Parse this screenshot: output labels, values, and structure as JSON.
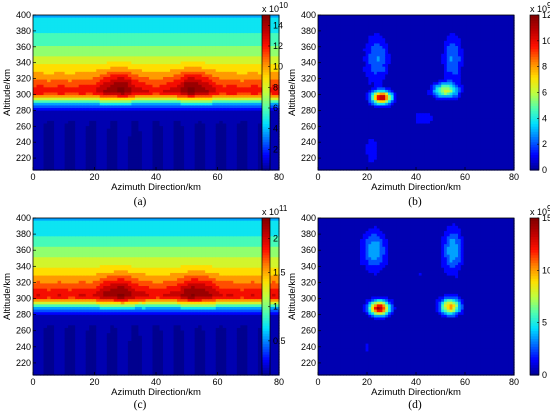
{
  "colormap": [
    "#00008f",
    "#0000ff",
    "#0070ff",
    "#00dfff",
    "#50ffaf",
    "#bfff40",
    "#ffdf00",
    "#ff8000",
    "#ff1000",
    "#bf0000",
    "#800000"
  ],
  "chart_data": [
    {
      "type": "heatmap",
      "caption": "(a)",
      "xlabel": "Azimuth Direction/km",
      "ylabel": "Altitude/km",
      "xlim": [
        0,
        80
      ],
      "ylim": [
        205,
        400
      ],
      "xticks": [
        "0",
        "20",
        "40",
        "60",
        "80"
      ],
      "yticks": [
        "220",
        "240",
        "260",
        "280",
        "300",
        "320",
        "340",
        "360",
        "380",
        "400"
      ],
      "colorbar": {
        "min": 0,
        "max": 15,
        "ticks": [
          "2",
          "4",
          "6",
          "8",
          "10",
          "12",
          "14"
        ],
        "multiplier": "x 10",
        "exponent": "10"
      },
      "field": {
        "kind": "layer",
        "peak_altitude": 305,
        "peak_value": 12.5,
        "bumps": [
          [
            28,
            312
          ],
          [
            52,
            312
          ]
        ],
        "bump_value": 3.0
      }
    },
    {
      "type": "heatmap",
      "caption": "(b)",
      "xlabel": "Azimuth Direction/km",
      "ylabel": "Altitude/km",
      "xlim": [
        0,
        80
      ],
      "ylim": [
        205,
        400
      ],
      "xticks": [
        "0",
        "20",
        "40",
        "60",
        "80"
      ],
      "yticks": [
        "220",
        "240",
        "260",
        "280",
        "300",
        "320",
        "340",
        "360",
        "380",
        "400"
      ],
      "colorbar": {
        "min": 0,
        "max": 12,
        "ticks": [
          "0",
          "2",
          "4",
          "6",
          "8",
          "10",
          "12"
        ],
        "multiplier": "x 10",
        "exponent": "9"
      },
      "field": {
        "kind": "blobs",
        "blobs": [
          [
            26,
            296,
            4,
            8,
            11
          ],
          [
            24,
            345,
            5,
            30,
            2.5
          ],
          [
            52,
            305,
            5,
            9,
            6
          ],
          [
            55,
            345,
            4,
            30,
            2.5
          ],
          [
            22,
            230,
            3,
            20,
            1.5
          ],
          [
            43,
            270,
            6,
            12,
            1.2
          ]
        ]
      }
    },
    {
      "type": "heatmap",
      "caption": "(c)",
      "xlabel": "Azimuth Direction/km",
      "ylabel": "Altitude/km",
      "xlim": [
        0,
        80
      ],
      "ylim": [
        205,
        400
      ],
      "xticks": [
        "0",
        "20",
        "40",
        "60",
        "80"
      ],
      "yticks": [
        "220",
        "240",
        "260",
        "280",
        "300",
        "320",
        "340",
        "360",
        "380",
        "400"
      ],
      "colorbar": {
        "min": 0,
        "max": 2.3,
        "ticks": [
          "0.5",
          "1",
          "1.5",
          "2"
        ],
        "multiplier": "x 10",
        "exponent": "11"
      },
      "field": {
        "kind": "layer",
        "peak_altitude": 305,
        "peak_value": 1.95,
        "bumps": [
          [
            28,
            310
          ],
          [
            53,
            310
          ]
        ],
        "bump_value": 0.4
      }
    },
    {
      "type": "heatmap",
      "caption": "(d)",
      "xlabel": "Azimuth Direction/km",
      "ylabel": "Altitude/km",
      "xlim": [
        0,
        80
      ],
      "ylim": [
        205,
        400
      ],
      "xticks": [
        "0",
        "20",
        "40",
        "60",
        "80"
      ],
      "yticks": [
        "220",
        "240",
        "260",
        "280",
        "300",
        "320",
        "340",
        "360",
        "380",
        "400"
      ],
      "colorbar": {
        "min": 0,
        "max": 15,
        "ticks": [
          "0",
          "5",
          "10",
          "15"
        ],
        "multiplier": "x 10",
        "exponent": "9"
      },
      "field": {
        "kind": "blobs",
        "blobs": [
          [
            25,
            288,
            4,
            9,
            14
          ],
          [
            23,
            360,
            5,
            25,
            4
          ],
          [
            54,
            290,
            4,
            10,
            10
          ],
          [
            55,
            360,
            4,
            28,
            4
          ],
          [
            40,
            330,
            8,
            40,
            0.8
          ],
          [
            20,
            240,
            3,
            15,
            1.2
          ]
        ]
      }
    }
  ]
}
